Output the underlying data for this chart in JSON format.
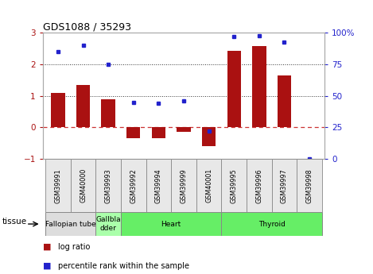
{
  "title": "GDS1088 / 35293",
  "samples": [
    "GSM39991",
    "GSM40000",
    "GSM39993",
    "GSM39992",
    "GSM39994",
    "GSM39999",
    "GSM40001",
    "GSM39995",
    "GSM39996",
    "GSM39997",
    "GSM39998"
  ],
  "log_ratio": [
    1.1,
    1.35,
    0.9,
    -0.35,
    -0.33,
    -0.15,
    -0.6,
    2.42,
    2.58,
    1.65,
    0.0
  ],
  "pct_rank": [
    85,
    90,
    75,
    45,
    44,
    46,
    22,
    97,
    98,
    93,
    0
  ],
  "bar_color": "#aa1111",
  "dot_color": "#2222cc",
  "ylim_left": [
    -1,
    3
  ],
  "ylim_right": [
    0,
    100
  ],
  "yticks_left": [
    -1,
    0,
    1,
    2,
    3
  ],
  "ytick_labels_right": [
    "0",
    "25",
    "50",
    "75",
    "100%"
  ],
  "hlines_dotted": [
    1.0,
    2.0
  ],
  "hline_zero_color": "#cc3333",
  "hline_dotted_color": "#333333",
  "tissues": [
    {
      "label": "Fallopian tube",
      "start": 0,
      "end": 2,
      "color": "#dddddd"
    },
    {
      "label": "Gallbla\ndder",
      "start": 2,
      "end": 3,
      "color": "#aaffaa"
    },
    {
      "label": "Heart",
      "start": 3,
      "end": 7,
      "color": "#66ee66"
    },
    {
      "label": "Thyroid",
      "start": 7,
      "end": 11,
      "color": "#66ee66"
    }
  ],
  "legend_bar_label": "log ratio",
  "legend_dot_label": "percentile rank within the sample",
  "tissue_label": "tissue",
  "bg_color": "#ffffff"
}
